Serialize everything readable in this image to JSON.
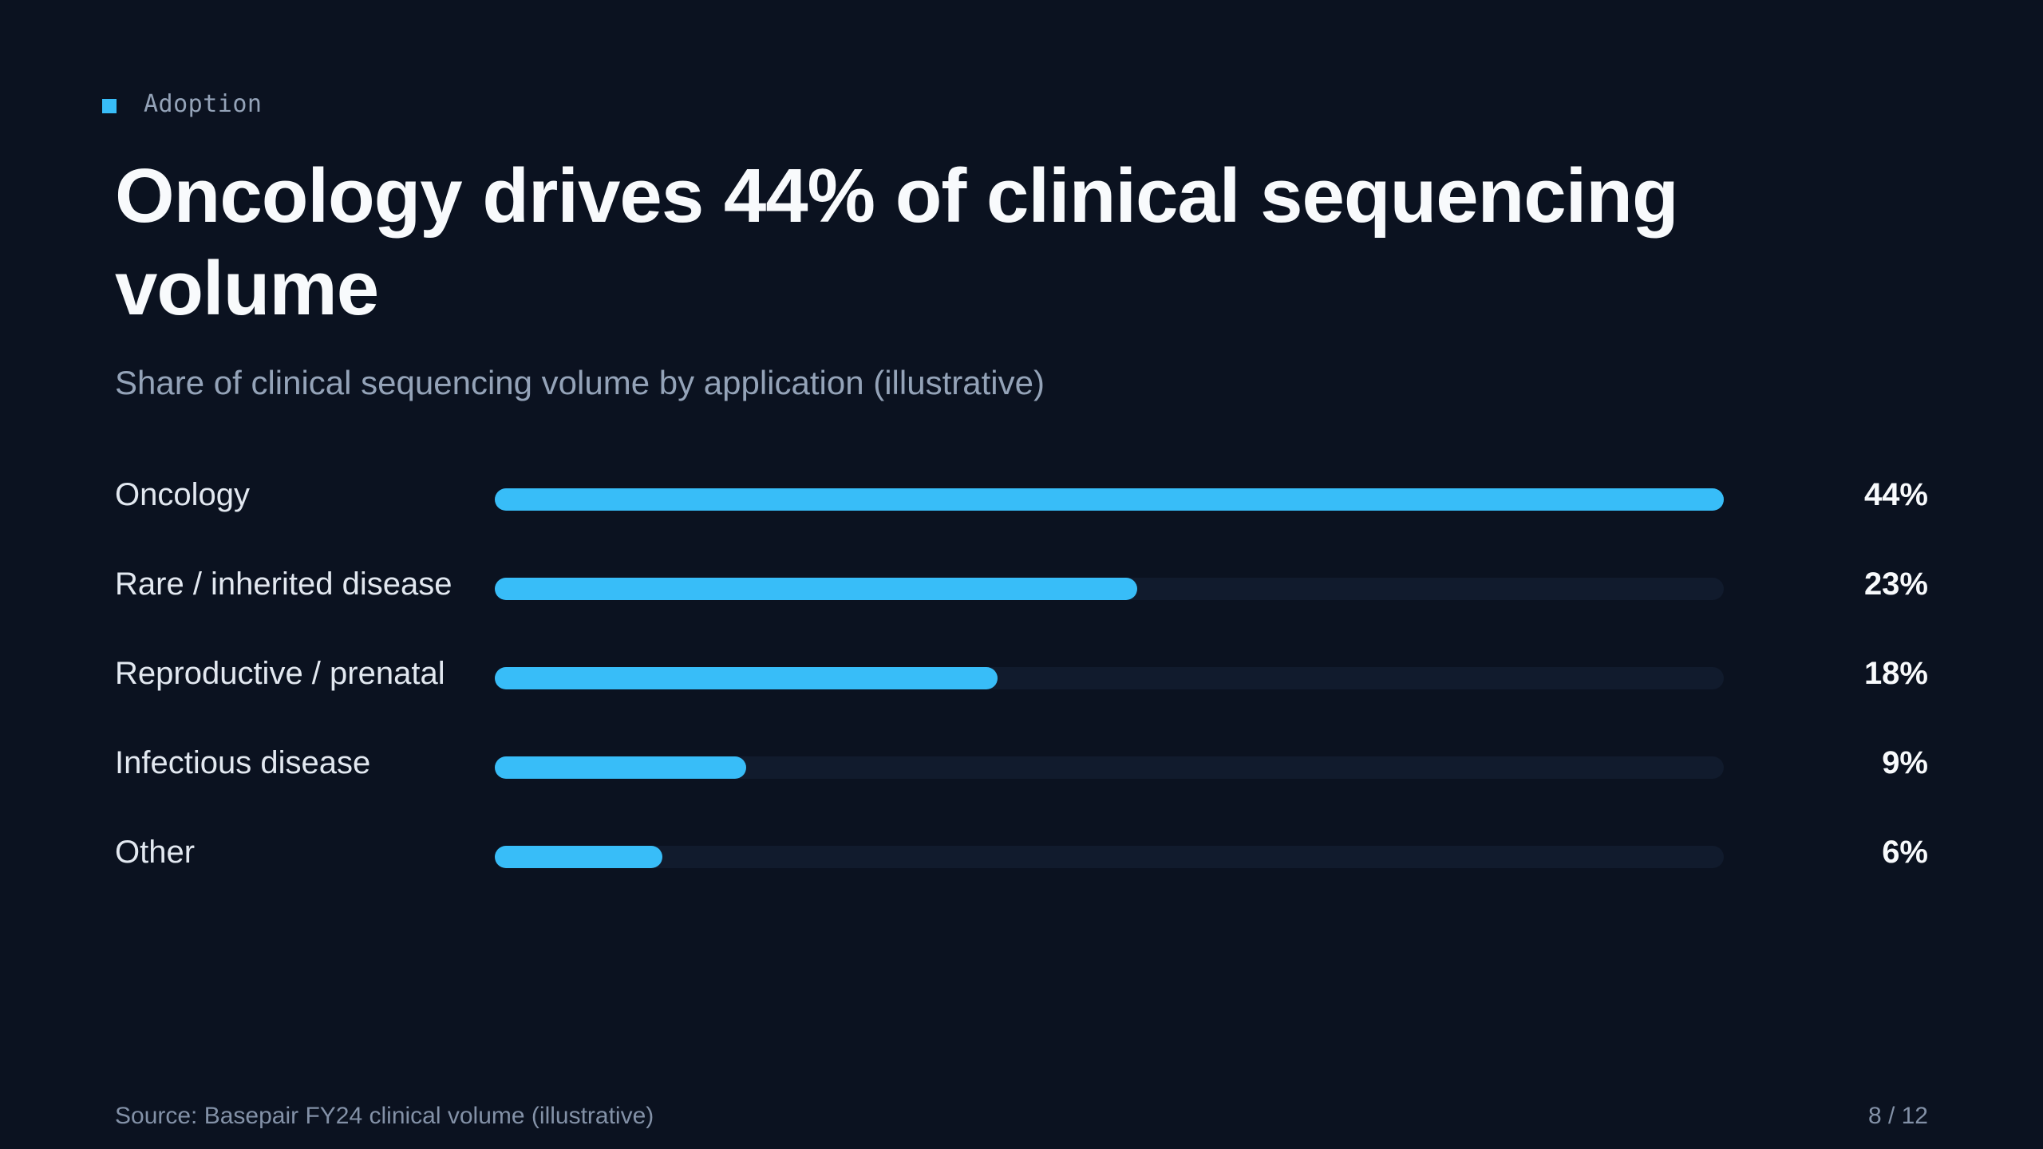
{
  "kicker": {
    "label": "Adoption",
    "icon": "square-marker-icon",
    "accent": "#38bdf8"
  },
  "title": "Oncology drives 44% of clinical sequencing volume",
  "subtitle": "Share of clinical sequencing volume by application (illustrative)",
  "chart_data": {
    "type": "bar",
    "orientation": "horizontal",
    "categories": [
      "Oncology",
      "Rare / inherited disease",
      "Reproductive / prenatal",
      "Infectious disease",
      "Other"
    ],
    "values": [
      44,
      23,
      18,
      9,
      6
    ],
    "value_labels": [
      "44%",
      "23%",
      "18%",
      "9%",
      "6%"
    ],
    "title": "Oncology drives 44% of clinical sequencing volume",
    "subtitle": "Share of clinical sequencing volume by application (illustrative)",
    "xlim": [
      0,
      44
    ],
    "grid": false,
    "bar_color": "#38bdf8",
    "track_color": "#111b2d"
  },
  "footer": {
    "source": "Source: Basepair FY24 clinical volume (illustrative)",
    "page": "8 / 12"
  }
}
